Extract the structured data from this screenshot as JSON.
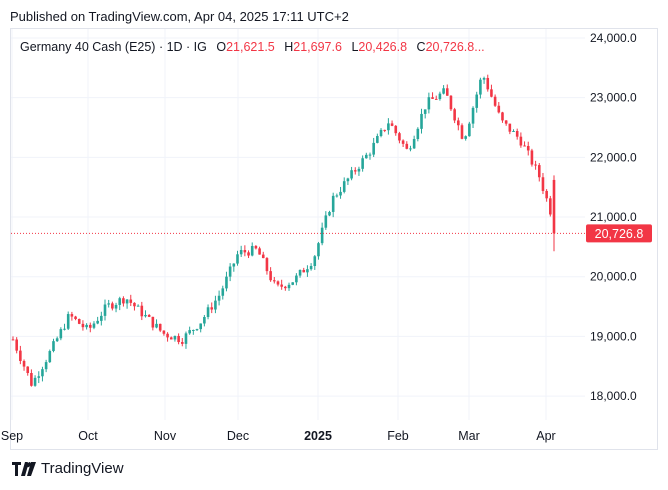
{
  "header": {
    "published_text": "Published on TradingView.com, Apr 04, 2025 17:11 UTC+2"
  },
  "legend": {
    "symbol": "Germany 40 Cash (E25) · 1D · IG",
    "open_label": "O",
    "open_value": "21,621.5",
    "high_label": "H",
    "high_value": "21,697.6",
    "low_label": "L",
    "low_value": "20,426.8",
    "close_label": "C",
    "close_value": "20,726.8..."
  },
  "footer": {
    "brand": "TradingView"
  },
  "colors": {
    "up": "#26a69a",
    "down": "#f23645",
    "grid": "#f0f3fa",
    "text": "#131722"
  },
  "chart_data": {
    "type": "candlestick",
    "y_axis": {
      "ylim": [
        17600,
        24150
      ],
      "ticks": [
        18000,
        19000,
        20000,
        21000,
        22000,
        23000,
        24000
      ],
      "tick_labels": [
        "18,000.0",
        "19,000.0",
        "20,000.0",
        "21,000.0",
        "22,000.0",
        "23,000.0",
        "24,000.0"
      ]
    },
    "x_axis": {
      "tick_labels": [
        "Sep",
        "Oct",
        "Nov",
        "Dec",
        "2025",
        "Feb",
        "Mar",
        "Apr"
      ],
      "bold": [
        "2025"
      ]
    },
    "last_price": {
      "value": 20726.8,
      "label": "20,726.8"
    },
    "grid": true,
    "monthly_path": [
      {
        "month": "Sep 2024",
        "open": 18950,
        "close": 19350,
        "low": 18200,
        "high": 19100
      },
      {
        "month": "Oct 2024",
        "open": 19350,
        "close": 19150,
        "low": 18900,
        "high": 19650
      },
      {
        "month": "Nov 2024",
        "open": 19150,
        "close": 19600,
        "low": 18850,
        "high": 19600
      },
      {
        "month": "Dec 2024",
        "open": 19600,
        "close": 19900,
        "low": 19600,
        "high": 20500
      },
      {
        "month": "Jan 2025",
        "open": 19900,
        "close": 21800,
        "low": 19800,
        "high": 21800
      },
      {
        "month": "Feb 2025",
        "open": 21800,
        "close": 22500,
        "low": 21000,
        "high": 22900
      },
      {
        "month": "Mar 2025",
        "open": 22500,
        "close": 22200,
        "low": 21900,
        "high": 23450
      },
      {
        "month": "Apr 2025",
        "open": 22200,
        "close": 20726.8,
        "low": 20426.8,
        "high": 22600
      }
    ]
  }
}
